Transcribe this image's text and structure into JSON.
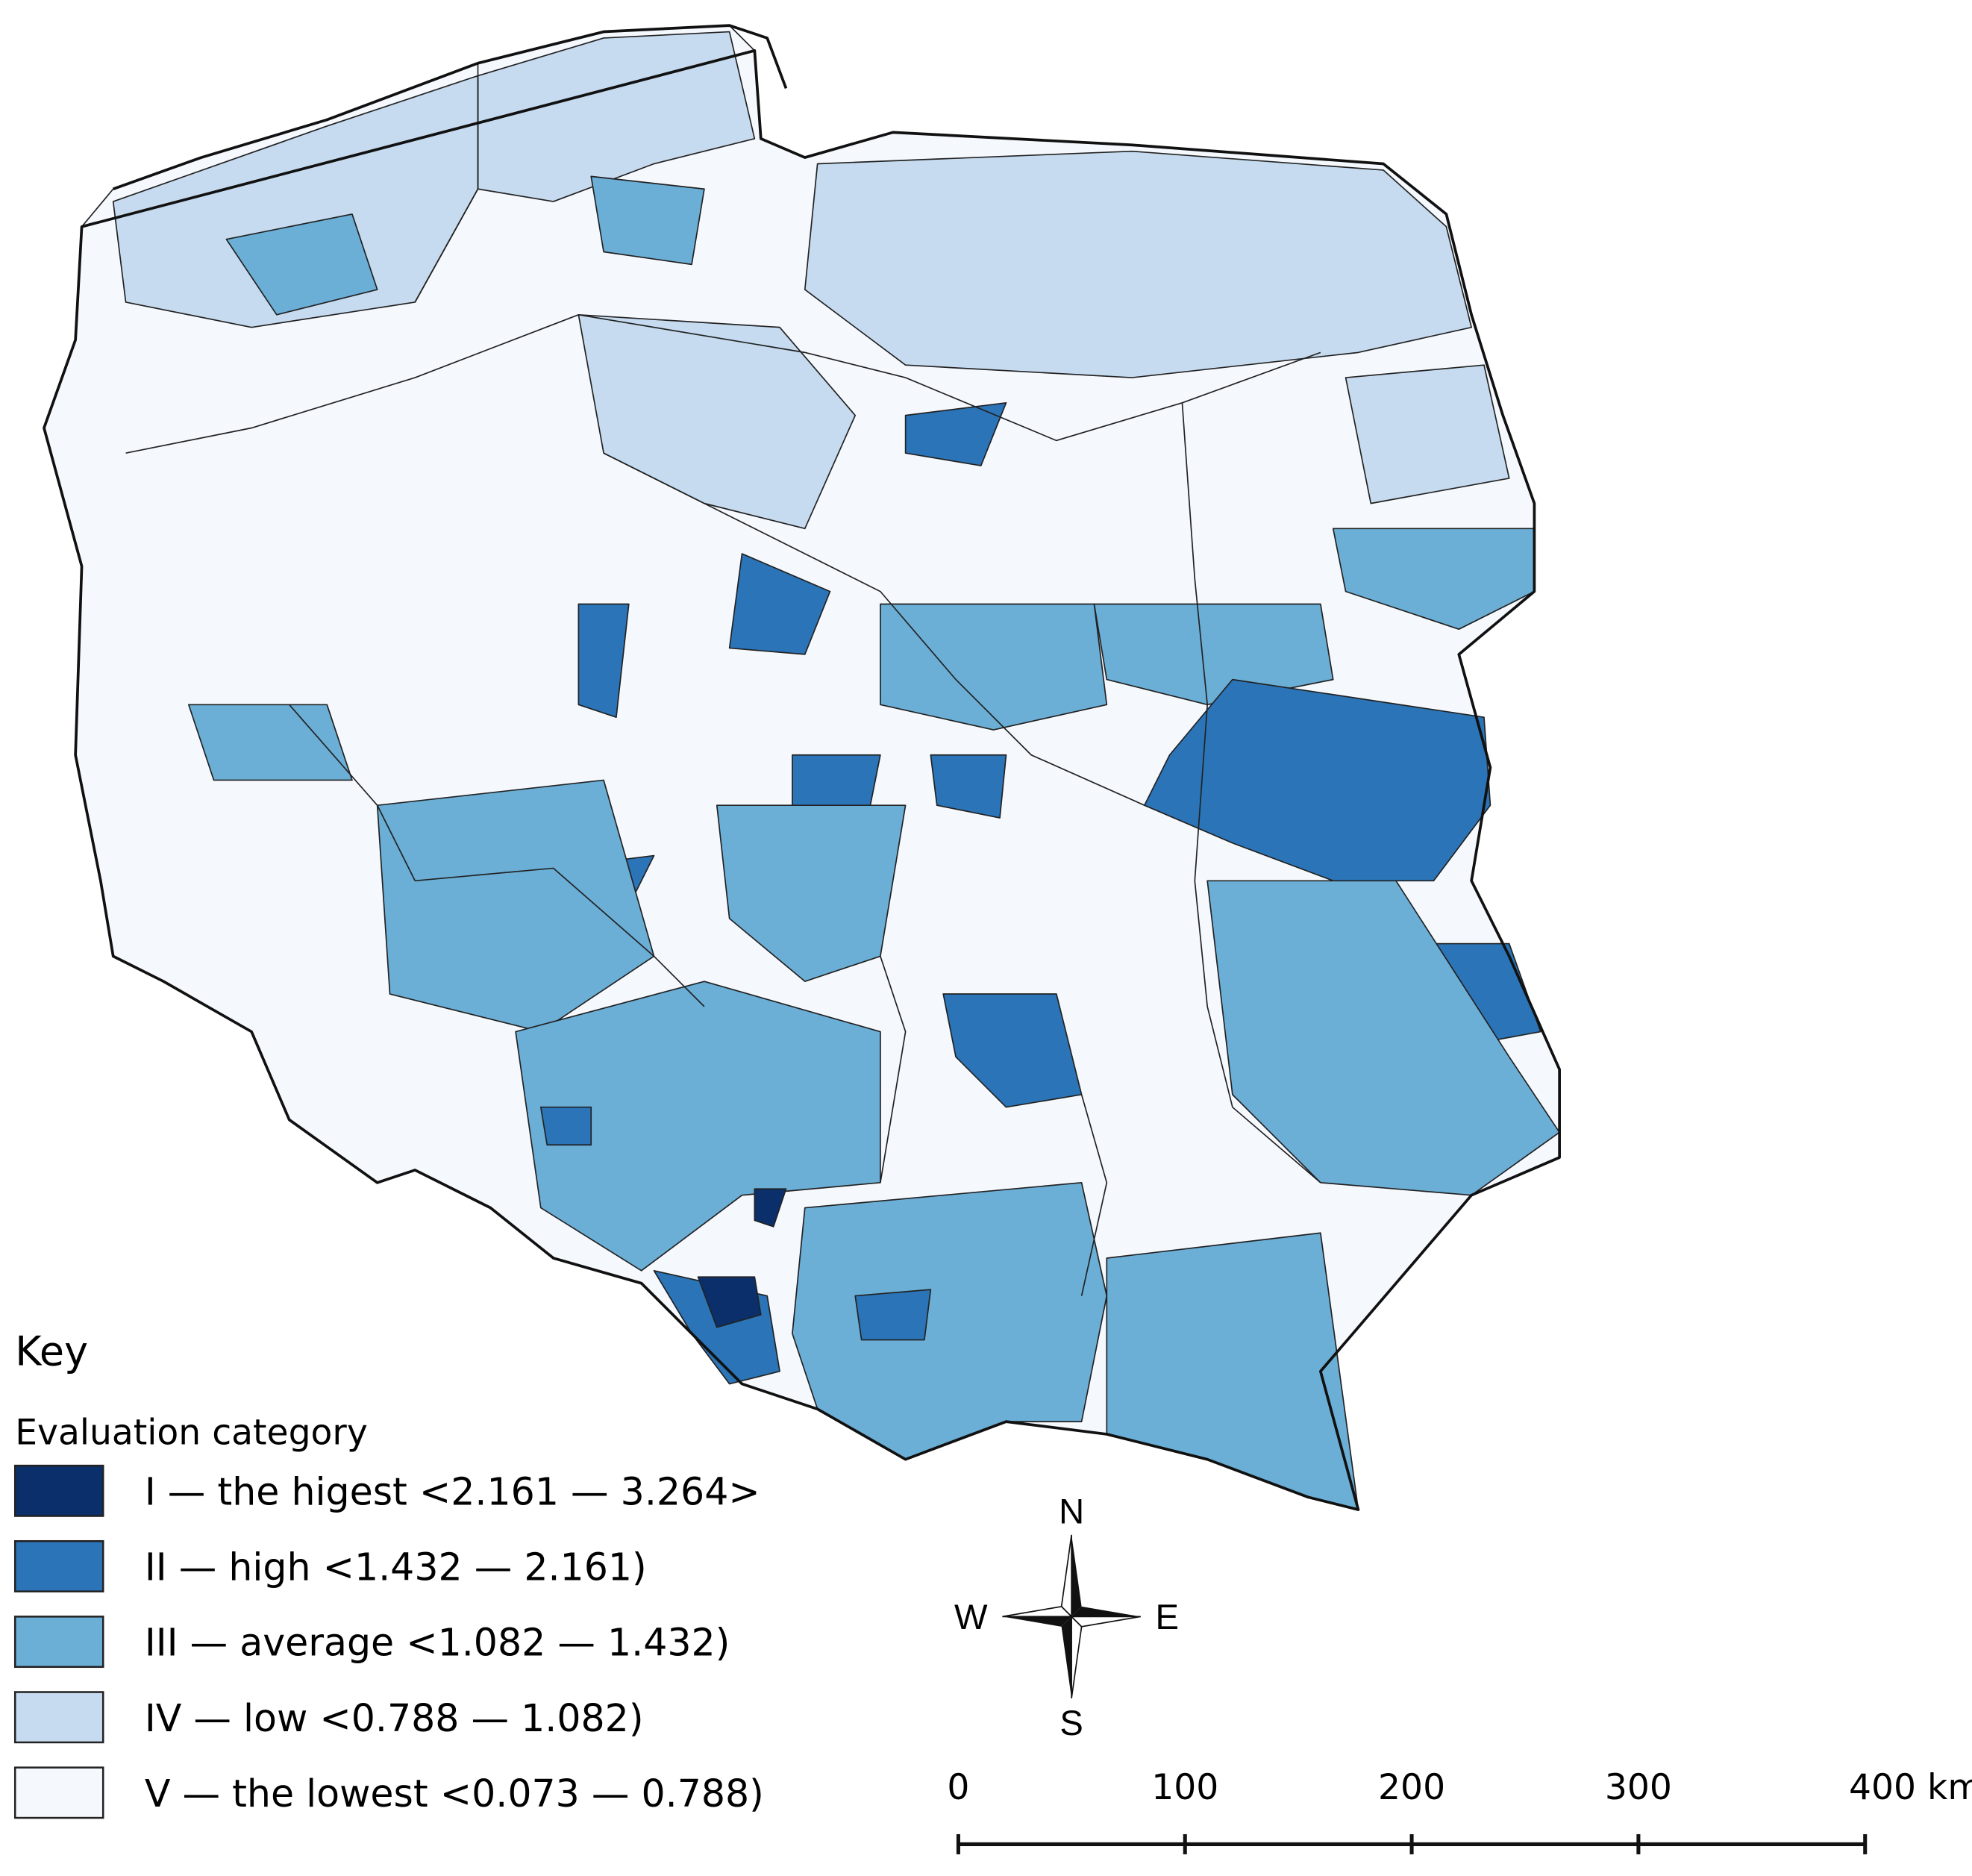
{
  "legend": {
    "heading": "Key",
    "title": "Evaluation category",
    "items": [
      {
        "label": "I — the higest <2.161 — 3.264>",
        "color": "#0b2f6b"
      },
      {
        "label": "II — high <1.432 — 2.161)",
        "color": "#2a74b7"
      },
      {
        "label": "III — average <1.082 — 1.432)",
        "color": "#6baed6"
      },
      {
        "label": "IV — low <0.788 — 1.082)",
        "color": "#c6dbef"
      },
      {
        "label": "V — the lowest <0.073 — 0.788)",
        "color": "#f5f9fe"
      }
    ]
  },
  "compass": {
    "north": "N",
    "east": "E",
    "south": "S",
    "west": "W"
  },
  "scale_bar": {
    "labels": [
      "0",
      "100",
      "200",
      "300",
      "400 km"
    ]
  }
}
